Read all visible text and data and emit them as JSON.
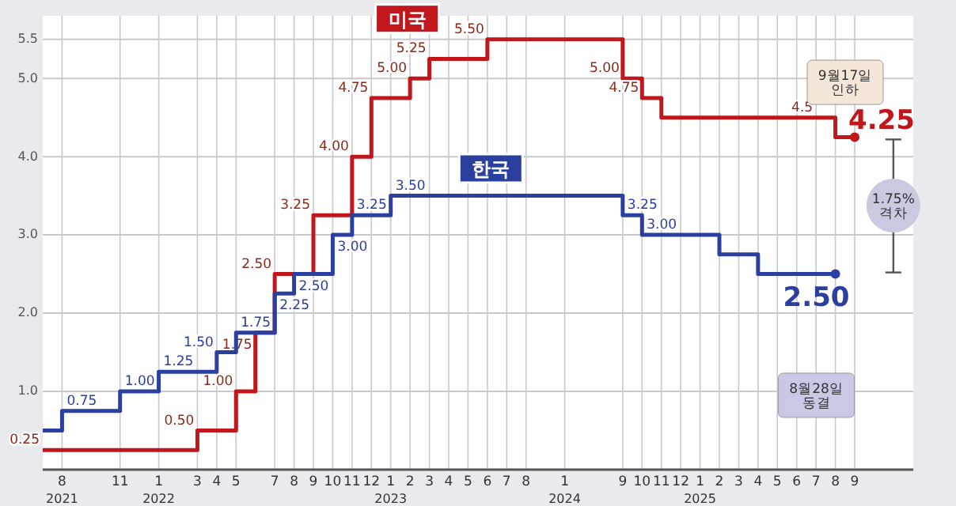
{
  "chart_data": {
    "type": "step",
    "categories": [
      null,
      "8\n2021",
      null,
      null,
      "11",
      null,
      "1\n2022",
      null,
      "3",
      "4",
      "5",
      null,
      "7",
      "8",
      "9",
      "10",
      "11",
      "12",
      "1\n2023",
      "2",
      "3",
      "4",
      "5",
      "6",
      "7",
      "8",
      null,
      "1\n2024",
      null,
      null,
      "9",
      "10",
      "11",
      "12",
      "1\n2025",
      "2",
      "3",
      "4",
      "5",
      "6",
      "7",
      "8",
      "9"
    ],
    "series": [
      {
        "name": "미국",
        "color": "#c0161c",
        "values": [
          0.25,
          0.25,
          0.25,
          0.25,
          0.25,
          0.25,
          0.25,
          0.25,
          0.5,
          0.5,
          1.0,
          1.75,
          2.5,
          2.5,
          3.25,
          3.25,
          4.0,
          4.75,
          4.75,
          5.0,
          5.25,
          5.25,
          5.25,
          5.5,
          5.5,
          5.5,
          5.5,
          5.5,
          5.5,
          5.5,
          5.0,
          4.75,
          4.5,
          4.5,
          4.5,
          4.5,
          4.5,
          4.5,
          4.5,
          4.5,
          4.5,
          4.25,
          4.25
        ],
        "value_labels": [
          "0.25",
          null,
          null,
          null,
          null,
          null,
          null,
          null,
          "0.50",
          null,
          "1.00",
          "1.75",
          "2.50",
          null,
          "3.25",
          null,
          "4.00",
          "4.75",
          null,
          "5.00",
          "5.25",
          null,
          null,
          "5.50",
          null,
          null,
          null,
          null,
          null,
          null,
          "5.00",
          "4.75",
          null,
          null,
          null,
          null,
          null,
          null,
          null,
          null,
          "4.5",
          null,
          "4.25"
        ]
      },
      {
        "name": "한국",
        "color": "#2b3f9e",
        "values": [
          0.5,
          0.75,
          0.75,
          0.75,
          1.0,
          1.0,
          1.25,
          1.25,
          1.25,
          1.5,
          1.75,
          1.75,
          2.25,
          2.5,
          2.5,
          3.0,
          3.25,
          3.25,
          3.5,
          3.5,
          3.5,
          3.5,
          3.5,
          3.5,
          3.5,
          3.5,
          3.5,
          3.5,
          3.5,
          3.5,
          3.25,
          3.0,
          3.0,
          3.0,
          3.0,
          2.75,
          2.75,
          2.5,
          2.5,
          2.5,
          2.5,
          2.5,
          null
        ],
        "value_labels": [
          null,
          "0.75",
          null,
          null,
          "1.00",
          null,
          "1.25",
          null,
          null,
          "1.50",
          "1.75",
          null,
          "2.25",
          "2.50",
          null,
          "3.00",
          "3.25",
          null,
          "3.50",
          null,
          null,
          null,
          null,
          null,
          null,
          null,
          null,
          null,
          null,
          null,
          "3.25",
          "3.00",
          null,
          null,
          null,
          null,
          null,
          null,
          null,
          null,
          null,
          "2.50",
          null
        ]
      }
    ],
    "ylim": [
      0,
      5.8
    ],
    "yticks": [
      {
        "value": 1,
        "label": "1.0"
      },
      {
        "value": 2,
        "label": "2.0"
      },
      {
        "value": 3,
        "label": "3.0"
      },
      {
        "value": 4,
        "label": "4.0"
      },
      {
        "value": 5,
        "label": "5.0"
      },
      5.5
    ],
    "grid": true,
    "annotations": [
      "9월17일\n인하",
      "1.75%\n격차",
      "8월28일\n동결"
    ]
  }
}
